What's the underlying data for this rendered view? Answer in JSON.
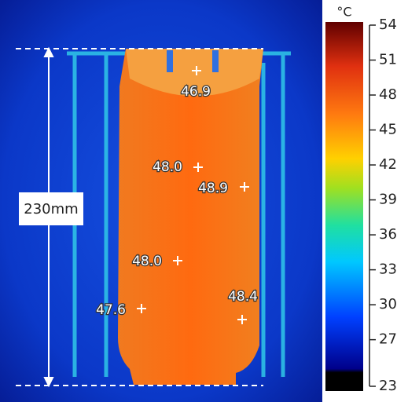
{
  "image": {
    "dimension_label": "230mm",
    "readings": [
      "46.9",
      "48.0",
      "48.9",
      "48.0",
      "47.6",
      "48.4"
    ]
  },
  "colorbar": {
    "unit": "°C",
    "range": [
      23,
      54
    ],
    "ticks": [
      54,
      51,
      48,
      45,
      42,
      39,
      36,
      33,
      30,
      27,
      23
    ]
  }
}
